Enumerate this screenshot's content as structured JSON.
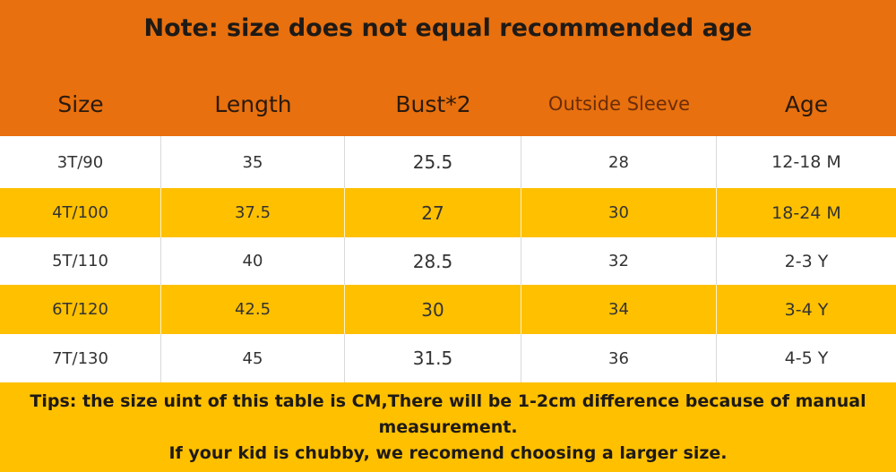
{
  "title": "Note: size does not equal recommended age",
  "table": {
    "header": [
      "Size",
      "Length",
      "Bust*2",
      "Outside Sleeve",
      "Age"
    ],
    "rows": [
      [
        "3T/90",
        35,
        25.5,
        28,
        "12-18 M"
      ],
      [
        "4T/100",
        37.5,
        27,
        30,
        "18-24 M"
      ],
      [
        "5T/110",
        40,
        28.5,
        32,
        "2-3 Y"
      ],
      [
        "6T/120",
        42.5,
        30,
        34,
        "3-4 Y"
      ],
      [
        "7T/130",
        45,
        31.5,
        36,
        "4-5 Y"
      ]
    ]
  },
  "tips": [
    "Tips: the size uint of this table is CM,There will be 1-2cm difference because of manual measurement.",
    "If your kid is chubby, we recomend choosing a larger size."
  ]
}
